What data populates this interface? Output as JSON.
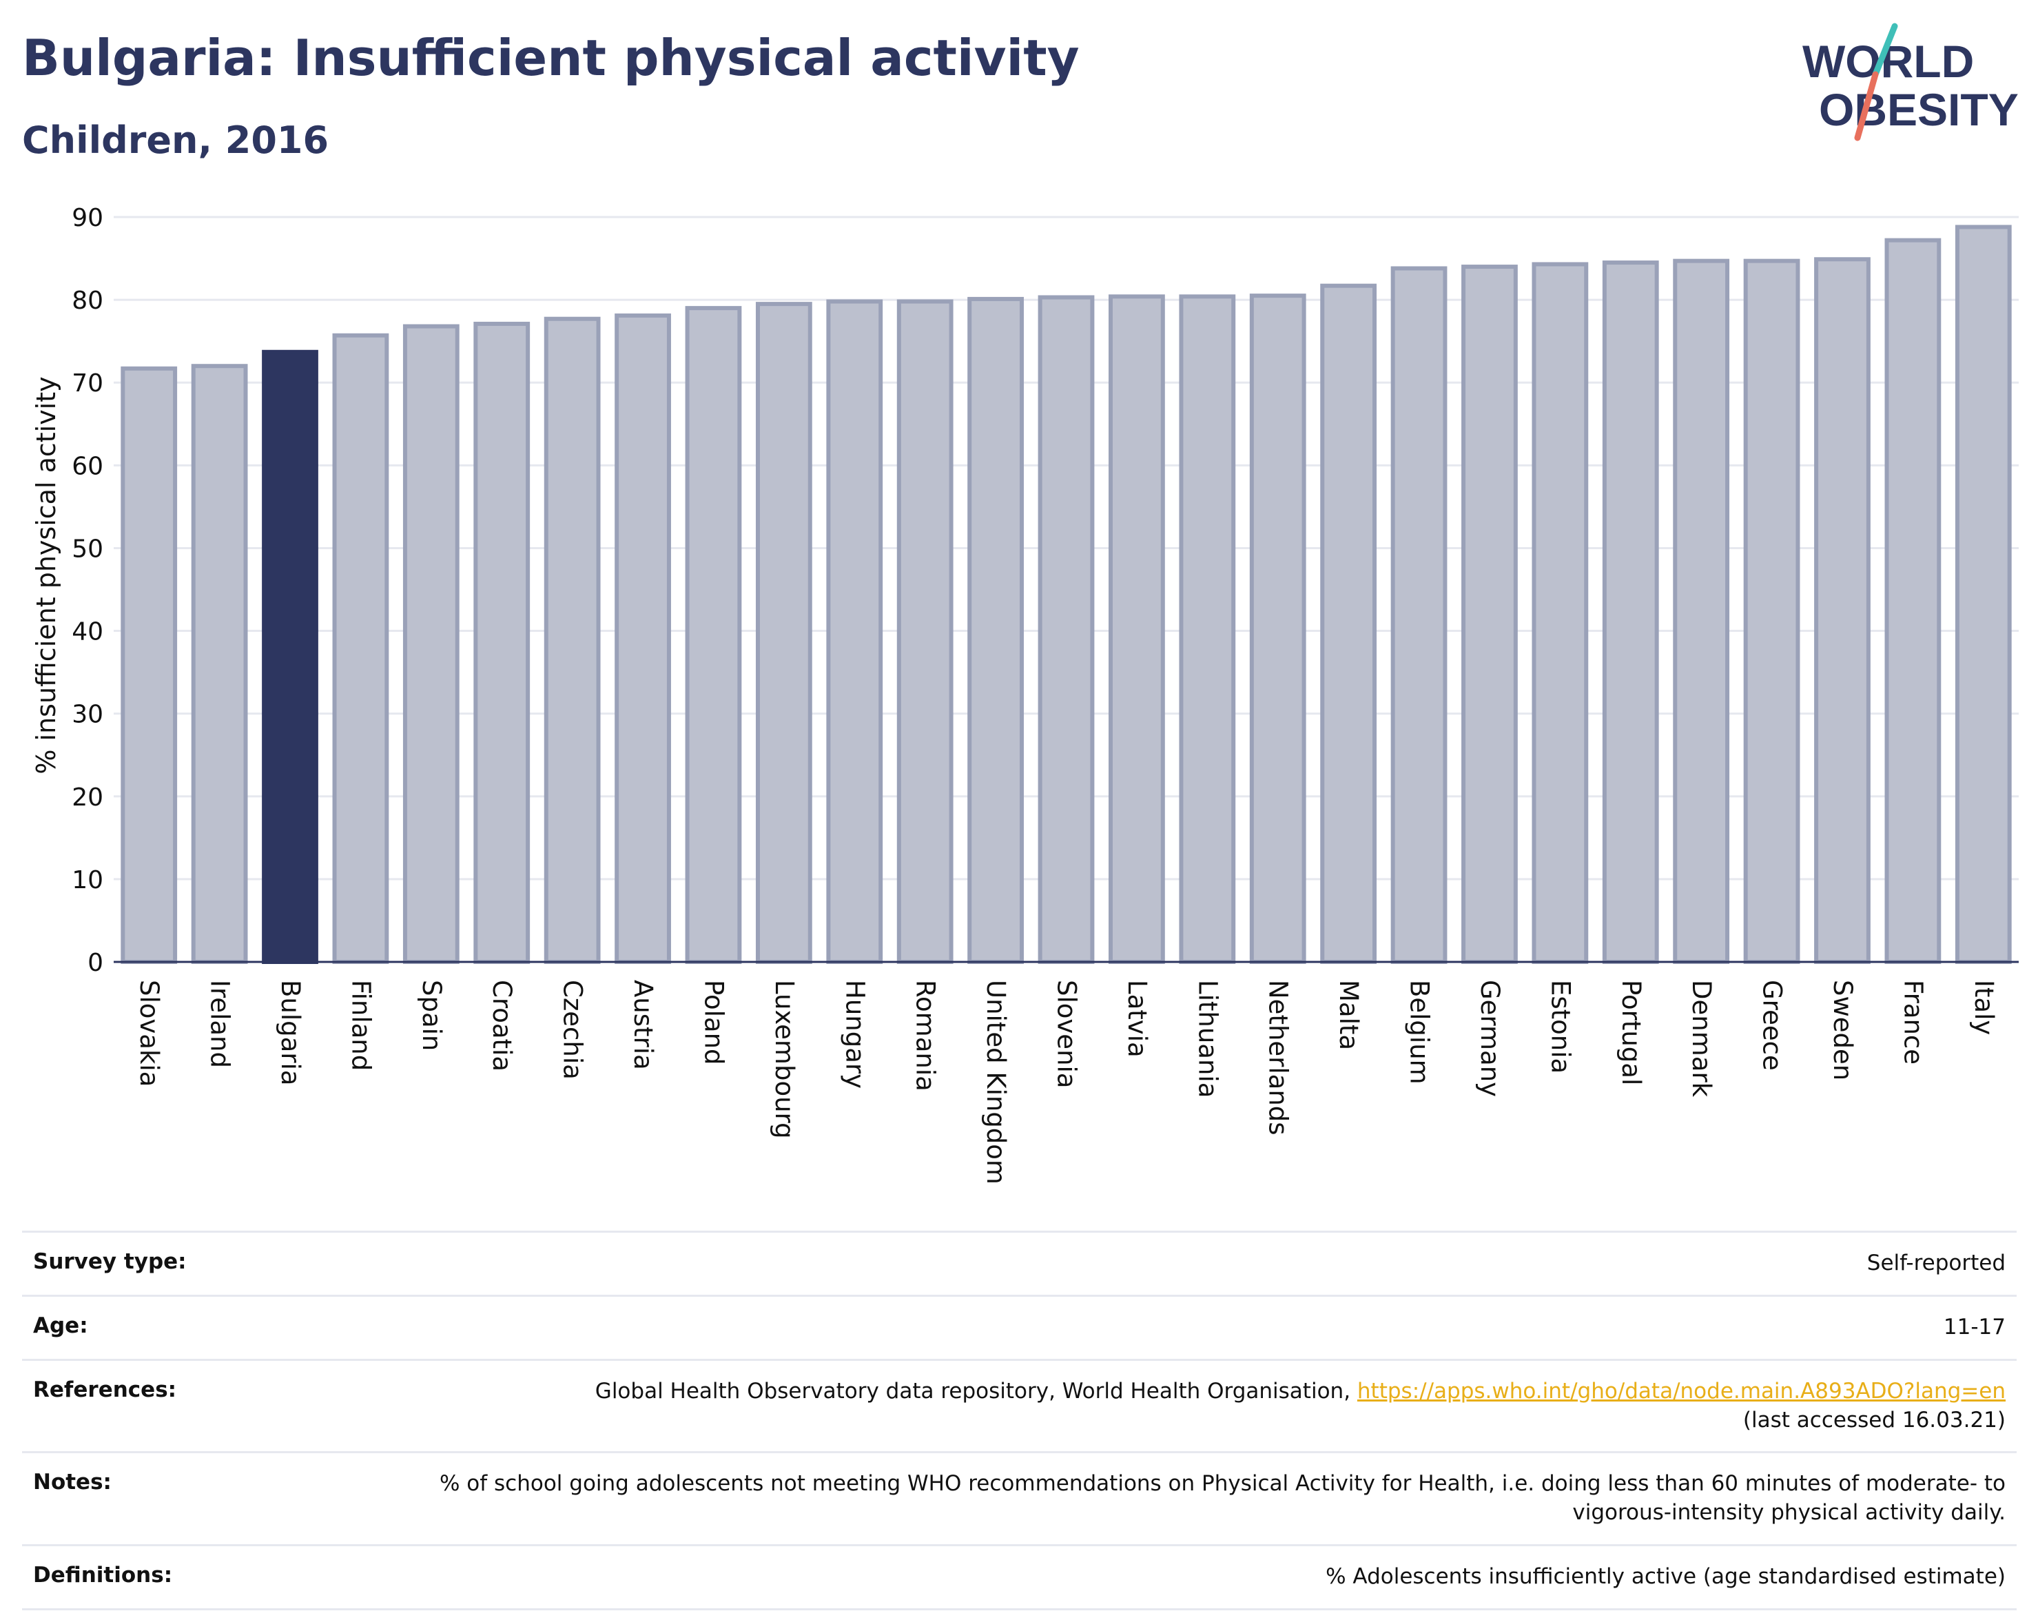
{
  "header": {
    "title": "Bulgaria: Insufficient physical activity",
    "subtitle": "Children, 2016"
  },
  "logo": {
    "line1": "WORLD",
    "line2": "OBESITY",
    "colors": {
      "text": "#2d3660",
      "slash_teal": "#3fbfb8",
      "slash_red": "#e8705d"
    }
  },
  "chart_data": {
    "type": "bar",
    "title": "",
    "xlabel": "",
    "ylabel": "% insufficient physical activity",
    "ylim": [
      0,
      90
    ],
    "yticks": [
      0,
      10,
      20,
      30,
      40,
      50,
      60,
      70,
      80,
      90
    ],
    "grid": true,
    "highlight": "Bulgaria",
    "colors": {
      "bar": "#bcc0ce",
      "bar_edge": "#9aa1b8",
      "highlight": "#2d3660",
      "grid": "#e6e8ef",
      "axis": "#2d3660"
    },
    "categories": [
      "Slovakia",
      "Ireland",
      "Bulgaria",
      "Finland",
      "Spain",
      "Croatia",
      "Czechia",
      "Austria",
      "Poland",
      "Luxembourg",
      "Hungary",
      "Romania",
      "United Kingdom",
      "Slovenia",
      "Latvia",
      "Lithuania",
      "Netherlands",
      "Malta",
      "Belgium",
      "Germany",
      "Estonia",
      "Portugal",
      "Denmark",
      "Greece",
      "Sweden",
      "France",
      "Italy"
    ],
    "values": [
      71.7,
      72.0,
      73.7,
      75.7,
      76.8,
      77.1,
      77.7,
      78.1,
      79.0,
      79.5,
      79.8,
      79.8,
      80.1,
      80.3,
      80.4,
      80.4,
      80.5,
      81.7,
      83.8,
      84.0,
      84.3,
      84.5,
      84.7,
      84.7,
      84.9,
      87.2,
      88.8
    ]
  },
  "meta": {
    "rows": [
      {
        "label": "Survey type:",
        "value": "Self-reported"
      },
      {
        "label": "Age:",
        "value": "11-17"
      },
      {
        "label": "References:",
        "value_prefix": "Global Health Observatory data repository, World Health Organisation, ",
        "link": "https://apps.who.int/gho/data/node.main.A893ADO?lang=en",
        "value_suffix": "(last accessed 16.03.21)"
      },
      {
        "label": "Notes:",
        "value": "% of school going adolescents not meeting WHO recommendations on Physical Activity for Health, i.e. doing less than 60 minutes of moderate- to vigorous-intensity physical activity daily."
      },
      {
        "label": "Definitions:",
        "value": "% Adolescents insufficiently active (age standardised estimate)"
      }
    ]
  }
}
